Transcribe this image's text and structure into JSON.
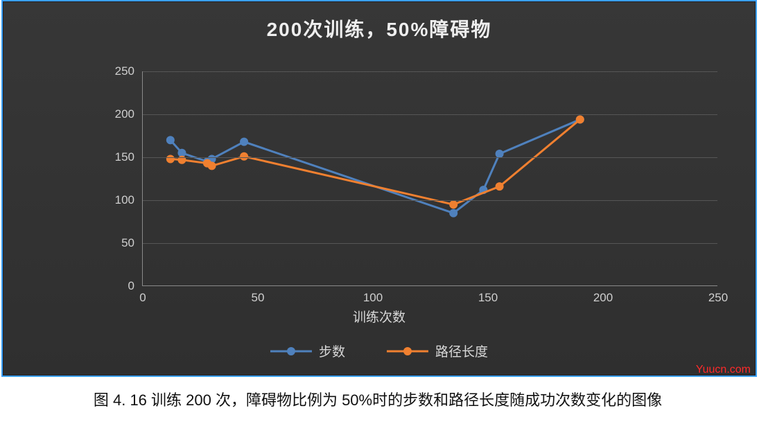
{
  "chart": {
    "type": "line",
    "title": "200次训练，50%障碍物",
    "title_fontsize": 28,
    "title_color": "#eeeeee",
    "background_gradient": [
      "#373737",
      "#2f2f2f"
    ],
    "grid_color": "#565656",
    "axis_color": "#8a8a8a",
    "tick_color": "#cfcfcf",
    "tick_fontsize": 17,
    "xlabel": "训练次数",
    "xlabel_fontsize": 19,
    "xlim": [
      0,
      250
    ],
    "ylim": [
      0,
      250
    ],
    "xtick_step": 50,
    "ytick_step": 50,
    "xticks": [
      0,
      50,
      100,
      150,
      200,
      250
    ],
    "yticks": [
      0,
      50,
      100,
      150,
      200,
      250
    ],
    "line_width": 3,
    "marker_radius": 6,
    "series": [
      {
        "name": "步数",
        "color": "#4f81bd",
        "marker_color": "#4f81bd",
        "x": [
          12,
          17,
          28,
          30,
          44,
          135,
          148,
          155,
          190
        ],
        "y": [
          170,
          155,
          145,
          148,
          168,
          85,
          112,
          154,
          194
        ]
      },
      {
        "name": "路径长度",
        "color": "#f08030",
        "marker_color": "#f08030",
        "x": [
          12,
          17,
          28,
          30,
          44,
          135,
          155,
          190
        ],
        "y": [
          148,
          147,
          143,
          140,
          151,
          95,
          116,
          194
        ]
      }
    ],
    "legend_fontsize": 19,
    "legend_color": "#d8d8d8"
  },
  "watermark": "Yuucn.com",
  "caption": "图 4. 16  训练 200 次，障碍物比例为 50%时的步数和路径长度随成功次数变化的图像",
  "frame_border_color": "#3aa0ff"
}
